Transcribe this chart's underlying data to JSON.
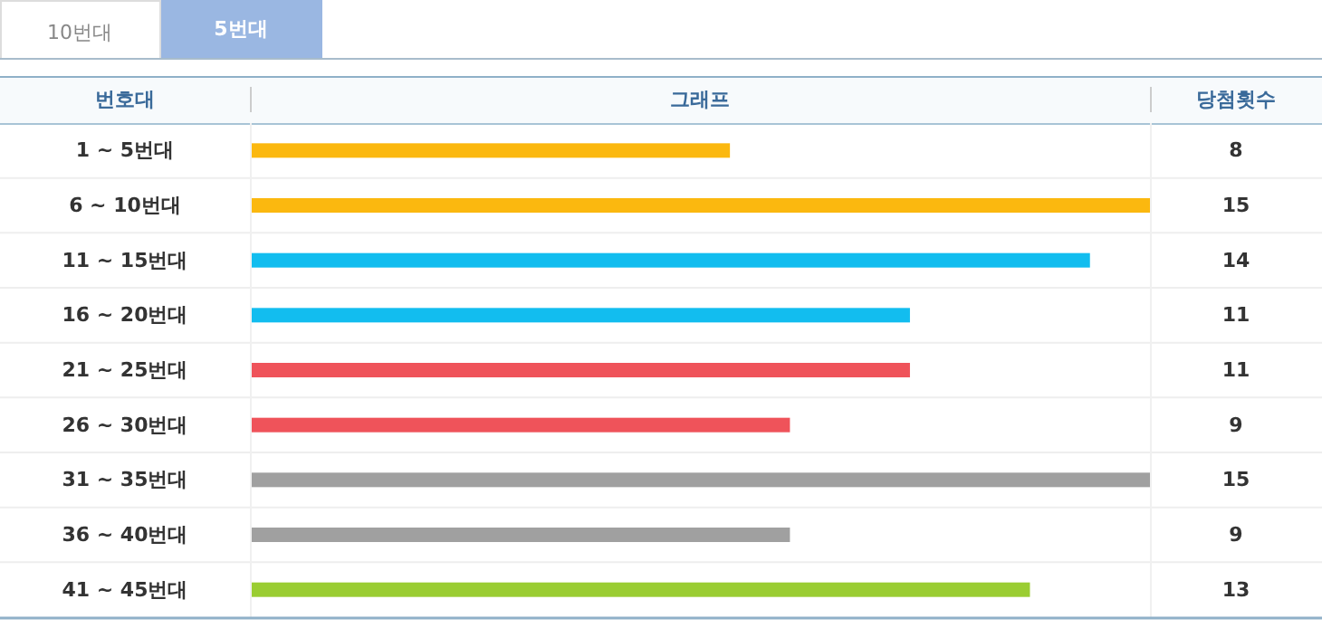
{
  "chart_data": {
    "type": "bar",
    "orientation": "horizontal",
    "ylabel": "번호대",
    "xlabel": "그래프",
    "y2label": "당첨횟수",
    "annotations": [
      "10번대",
      "5번대"
    ],
    "categories": [
      "1 ~ 5번대",
      "6 ~ 10번대",
      "11 ~ 15번대",
      "16 ~ 20번대",
      "21 ~ 25번대",
      "26 ~ 30번대",
      "31 ~ 35번대",
      "36 ~ 40번대",
      "41 ~ 45번대"
    ],
    "values": [
      8,
      15,
      14,
      11,
      11,
      9,
      15,
      9,
      13
    ],
    "colors": [
      "#fbb80f",
      "#fbb80f",
      "#12bdef",
      "#12bdef",
      "#ef535a",
      "#ef535a",
      "#a0a0a0",
      "#a0a0a0",
      "#9acd32"
    ],
    "data_labels": true
  }
}
